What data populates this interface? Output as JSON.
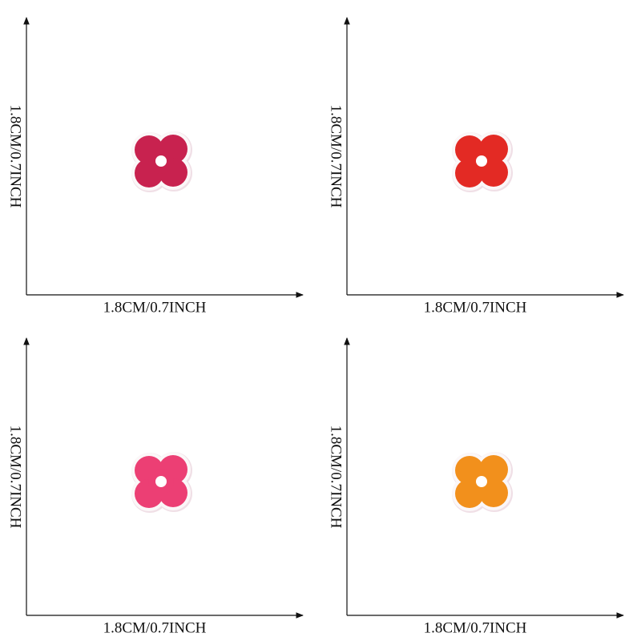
{
  "panels": [
    {
      "width_label": "1.8CM/0.7INCH",
      "height_label": "1.8CM/0.7INCH",
      "color": "#c8224f"
    },
    {
      "width_label": "1.8CM/0.7INCH",
      "height_label": "1.8CM/0.7INCH",
      "color": "#e32a24"
    },
    {
      "width_label": "1.8CM/0.7INCH",
      "height_label": "1.8CM/0.7INCH",
      "color": "#ec3f74"
    },
    {
      "width_label": "1.8CM/0.7INCH",
      "height_label": "1.8CM/0.7INCH",
      "color": "#f2901c"
    }
  ]
}
